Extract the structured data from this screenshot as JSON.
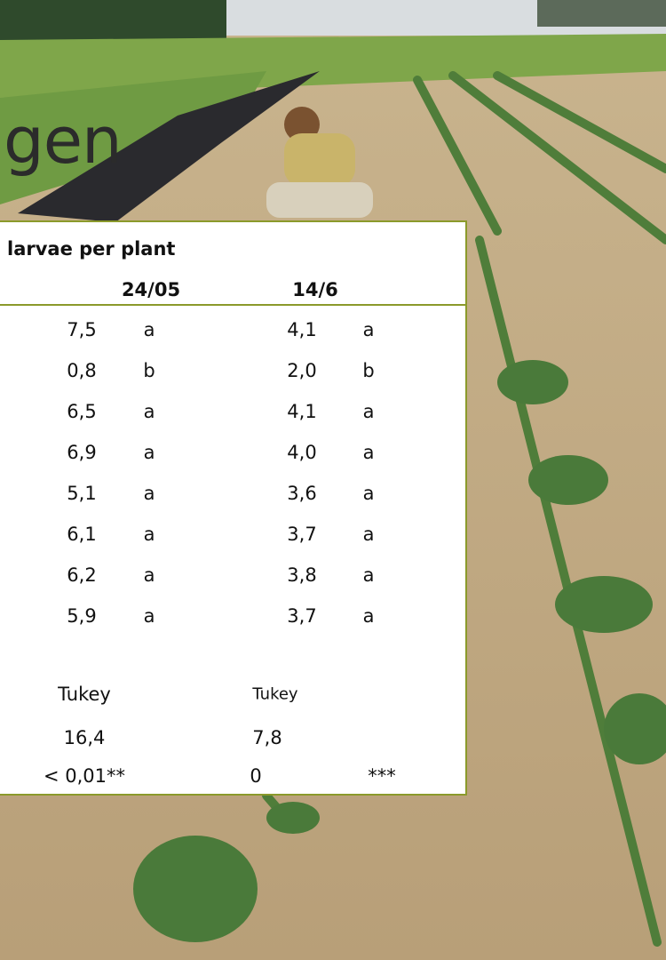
{
  "title": "gen",
  "table": {
    "caption": "larvae per plant",
    "columns": [
      "24/05",
      "14/6"
    ],
    "rows": [
      [
        "7,5",
        "a",
        "4,1",
        "a"
      ],
      [
        "0,8",
        "b",
        "2,0",
        "b"
      ],
      [
        "6,5",
        "a",
        "4,1",
        "a"
      ],
      [
        "6,9",
        "a",
        "4,0",
        "a"
      ],
      [
        "5,1",
        "a",
        "3,6",
        "a"
      ],
      [
        "6,1",
        "a",
        "3,7",
        "a"
      ],
      [
        "6,2",
        "a",
        "3,8",
        "a"
      ],
      [
        "5,9",
        "a",
        "3,7",
        "a"
      ]
    ],
    "test": [
      "Tukey",
      "Tukey"
    ],
    "statistic": [
      "16,4",
      "7,8"
    ],
    "significance": [
      "< 0,01**",
      "0",
      "***"
    ]
  }
}
